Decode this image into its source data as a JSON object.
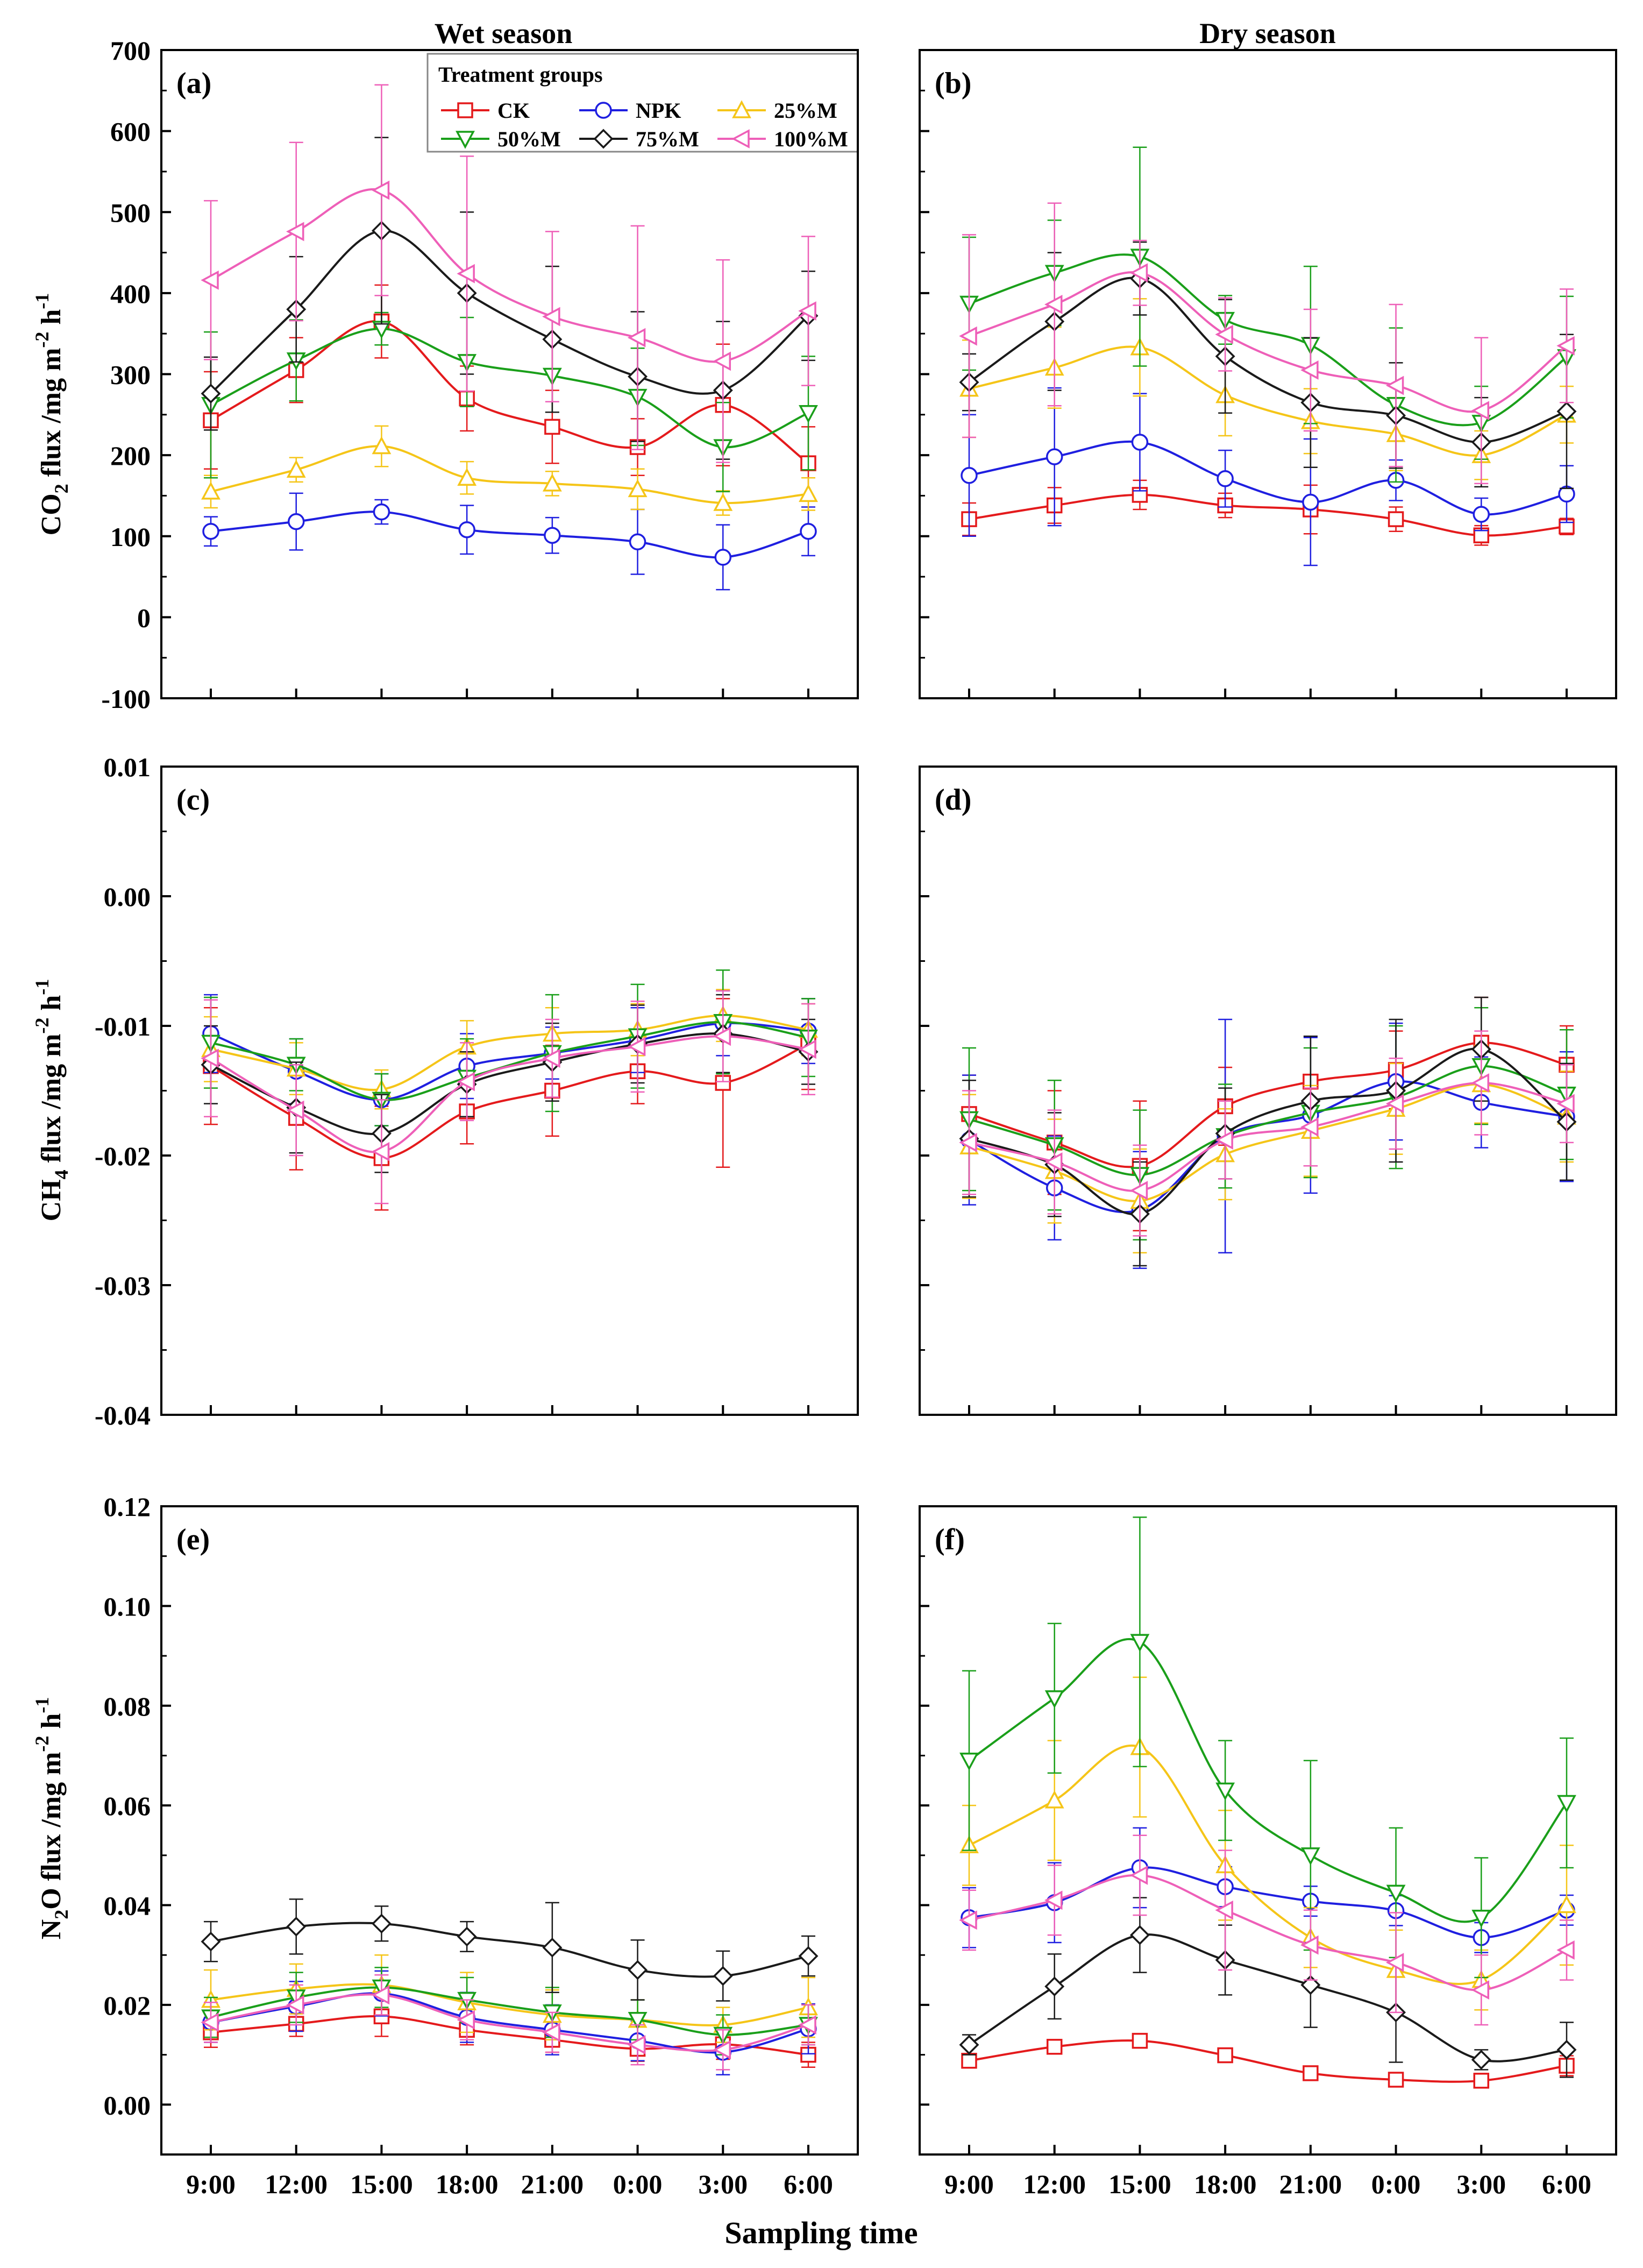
{
  "figure": {
    "season_titles": {
      "wet": "Wet season",
      "dry": "Dry season"
    },
    "x_axis_label": "Sampling time",
    "legend_title": "Treatment groups"
  },
  "x_ticks": [
    "9:00",
    "12:00",
    "15:00",
    "18:00",
    "21:00",
    "0:00",
    "3:00",
    "6:00"
  ],
  "y_labels": {
    "co2": {
      "pre": "CO",
      "sub": "2",
      "mid": " flux /mg m",
      "sup1": "-2",
      "mid2": " h",
      "sup2": "-1"
    },
    "ch4": {
      "pre": "CH",
      "sub": "4",
      "mid": " flux /mg m",
      "sup1": "-2",
      "mid2": " h",
      "sup2": "-1"
    },
    "n2o": {
      "pre": "N",
      "sub": "2",
      "mid": "O flux /mg m",
      "sup1": "-2",
      "mid2": " h",
      "sup2": "-1"
    }
  },
  "rows": {
    "co2": {
      "ylim": [
        -100,
        700
      ],
      "ticks": [
        "-100",
        "0",
        "100",
        "200",
        "300",
        "400",
        "500",
        "600",
        "700"
      ]
    },
    "ch4": {
      "ylim": [
        -0.04,
        0.01
      ],
      "ticks": [
        "-0.04",
        "-0.03",
        "-0.02",
        "-0.01",
        "0.00",
        "0.01"
      ]
    },
    "n2o": {
      "ylim": [
        -0.01,
        0.12
      ],
      "ticks": [
        "0.00",
        "0.02",
        "0.04",
        "0.06",
        "0.08",
        "0.10",
        "0.12"
      ]
    }
  },
  "series_styles": [
    {
      "name": "CK",
      "color": "#e41a1c",
      "marker": "square"
    },
    {
      "name": "NPK",
      "color": "#1f1fe0",
      "marker": "circle"
    },
    {
      "name": "25%M",
      "color": "#f5c518",
      "marker": "triangle-up"
    },
    {
      "name": "50%M",
      "color": "#1a9f1a",
      "marker": "triangle-down"
    },
    {
      "name": "75%M",
      "color": "#1a1a1a",
      "marker": "diamond"
    },
    {
      "name": "100%M",
      "color": "#ee5fb8",
      "marker": "triangle-left"
    }
  ],
  "chart_data": [
    {
      "type": "line",
      "panel": "(a)",
      "row": "co2",
      "season": "wet",
      "title": "Wet season",
      "xlabel": "Sampling time",
      "ylabel": "CO2 flux /mg m-2 h-1",
      "categories": [
        "9:00",
        "12:00",
        "15:00",
        "18:00",
        "21:00",
        "0:00",
        "3:00",
        "6:00"
      ],
      "ylim": [
        -100,
        700
      ],
      "series": [
        {
          "name": "CK",
          "values": [
            243,
            305,
            365,
            270,
            235,
            210,
            262,
            190
          ],
          "errors": [
            60,
            40,
            45,
            40,
            45,
            35,
            75,
            45
          ]
        },
        {
          "name": "NPK",
          "values": [
            106,
            118,
            130,
            108,
            101,
            93,
            74,
            106
          ],
          "errors": [
            18,
            35,
            15,
            30,
            22,
            40,
            40,
            30
          ]
        },
        {
          "name": "25%M",
          "values": [
            155,
            182,
            211,
            172,
            165,
            158,
            141,
            152
          ],
          "errors": [
            20,
            15,
            25,
            20,
            15,
            25,
            15,
            20
          ]
        },
        {
          "name": "50%M",
          "values": [
            262,
            317,
            356,
            315,
            298,
            272,
            210,
            252
          ],
          "errors": [
            90,
            50,
            20,
            55,
            45,
            60,
            55,
            70
          ]
        },
        {
          "name": "75%M",
          "values": [
            276,
            380,
            477,
            400,
            343,
            297,
            280,
            372
          ],
          "errors": [
            45,
            65,
            115,
            100,
            90,
            80,
            85,
            55
          ]
        },
        {
          "name": "100%M",
          "values": [
            416,
            476,
            527,
            424,
            371,
            345,
            316,
            378
          ],
          "errors": [
            98,
            110,
            130,
            145,
            105,
            138,
            125,
            92
          ]
        }
      ]
    },
    {
      "type": "line",
      "panel": "(b)",
      "row": "co2",
      "season": "dry",
      "title": "Dry season",
      "xlabel": "Sampling time",
      "ylabel": "CO2 flux /mg m-2 h-1",
      "categories": [
        "9:00",
        "12:00",
        "15:00",
        "18:00",
        "21:00",
        "0:00",
        "3:00",
        "6:00"
      ],
      "ylim": [
        -100,
        700
      ],
      "series": [
        {
          "name": "CK",
          "values": [
            121,
            138,
            151,
            138,
            133,
            121,
            101,
            112
          ],
          "errors": [
            20,
            22,
            18,
            15,
            30,
            15,
            12,
            10
          ]
        },
        {
          "name": "NPK",
          "values": [
            175,
            198,
            216,
            171,
            142,
            169,
            127,
            152
          ],
          "errors": [
            75,
            85,
            60,
            35,
            78,
            25,
            20,
            35
          ]
        },
        {
          "name": "25%M",
          "values": [
            282,
            308,
            333,
            274,
            242,
            226,
            200,
            250
          ],
          "errors": [
            60,
            50,
            60,
            50,
            40,
            45,
            30,
            35
          ]
        },
        {
          "name": "50%M",
          "values": [
            387,
            425,
            445,
            367,
            336,
            262,
            240,
            321
          ],
          "errors": [
            82,
            65,
            135,
            30,
            97,
            95,
            45,
            75
          ]
        },
        {
          "name": "75%M",
          "values": [
            290,
            365,
            418,
            322,
            265,
            249,
            216,
            254
          ],
          "errors": [
            35,
            85,
            45,
            70,
            80,
            65,
            55,
            95
          ]
        },
        {
          "name": "100%M",
          "values": [
            347,
            386,
            425,
            349,
            305,
            286,
            255,
            335
          ],
          "errors": [
            125,
            125,
            40,
            45,
            75,
            100,
            90,
            70
          ]
        }
      ]
    },
    {
      "type": "line",
      "panel": "(c)",
      "row": "ch4",
      "season": "wet",
      "title": "Wet season",
      "xlabel": "Sampling time",
      "ylabel": "CH4 flux /mg m-2 h-1",
      "categories": [
        "9:00",
        "12:00",
        "15:00",
        "18:00",
        "21:00",
        "0:00",
        "3:00",
        "6:00"
      ],
      "ylim": [
        -0.04,
        0.01
      ],
      "series": [
        {
          "name": "CK",
          "values": [
            -0.0131,
            -0.0171,
            -0.0202,
            -0.0166,
            -0.015,
            -0.0135,
            -0.0144,
            -0.0114
          ],
          "errors": [
            0.0045,
            0.004,
            0.004,
            0.0025,
            0.0035,
            0.0025,
            0.0065,
            0.0035
          ]
        },
        {
          "name": "NPK",
          "values": [
            -0.0106,
            -0.0135,
            -0.0157,
            -0.0131,
            -0.0121,
            -0.0111,
            -0.0098,
            -0.0104
          ],
          "errors": [
            0.003,
            0.0025,
            0.002,
            0.0025,
            0.002,
            0.0025,
            0.0025,
            0.0025
          ]
        },
        {
          "name": "25%M",
          "values": [
            -0.0118,
            -0.0133,
            -0.0149,
            -0.0116,
            -0.0106,
            -0.0103,
            -0.0092,
            -0.0103
          ],
          "errors": [
            0.0025,
            0.002,
            0.0015,
            0.002,
            0.002,
            0.002,
            0.002,
            0.002
          ]
        },
        {
          "name": "50%M",
          "values": [
            -0.0113,
            -0.013,
            -0.0157,
            -0.014,
            -0.0121,
            -0.0108,
            -0.0097,
            -0.0109
          ],
          "errors": [
            0.0035,
            0.002,
            0.002,
            0.003,
            0.0045,
            0.004,
            0.004,
            0.003
          ]
        },
        {
          "name": "75%M",
          "values": [
            -0.013,
            -0.0163,
            -0.0183,
            -0.0145,
            -0.0128,
            -0.0114,
            -0.0106,
            -0.012
          ],
          "errors": [
            0.003,
            0.0035,
            0.003,
            0.0025,
            0.003,
            0.003,
            0.003,
            0.0025
          ]
        },
        {
          "name": "100%M",
          "values": [
            -0.0125,
            -0.0165,
            -0.0197,
            -0.0143,
            -0.0125,
            -0.0116,
            -0.0108,
            -0.0118
          ],
          "errors": [
            0.0045,
            0.0035,
            0.004,
            0.003,
            0.003,
            0.0035,
            0.0035,
            0.0035
          ]
        }
      ]
    },
    {
      "type": "line",
      "panel": "(d)",
      "row": "ch4",
      "season": "dry",
      "title": "Dry season",
      "xlabel": "Sampling time",
      "ylabel": "CH4 flux /mg m-2 h-1",
      "categories": [
        "9:00",
        "12:00",
        "15:00",
        "18:00",
        "21:00",
        "0:00",
        "3:00",
        "6:00"
      ],
      "ylim": [
        -0.04,
        0.01
      ],
      "series": [
        {
          "name": "CK",
          "values": [
            -0.0168,
            -0.019,
            -0.0208,
            -0.0162,
            -0.0143,
            -0.0134,
            -0.0113,
            -0.013
          ],
          "errors": [
            0.003,
            0.004,
            0.005,
            0.003,
            0.0035,
            0.003,
            0.0035,
            0.003
          ]
        },
        {
          "name": "NPK",
          "values": [
            -0.0188,
            -0.0225,
            -0.0242,
            -0.0185,
            -0.0169,
            -0.0143,
            -0.0159,
            -0.017
          ],
          "errors": [
            0.005,
            0.004,
            0.0045,
            0.009,
            0.006,
            0.0045,
            0.0035,
            0.005
          ]
        },
        {
          "name": "25%M",
          "values": [
            -0.0193,
            -0.0212,
            -0.0235,
            -0.0199,
            -0.0181,
            -0.0164,
            -0.0145,
            -0.017
          ],
          "errors": [
            0.004,
            0.004,
            0.004,
            0.0035,
            0.0035,
            0.0035,
            0.003,
            0.0035
          ]
        },
        {
          "name": "50%M",
          "values": [
            -0.0172,
            -0.0192,
            -0.0215,
            -0.0185,
            -0.0167,
            -0.0155,
            -0.0131,
            -0.0153
          ],
          "errors": [
            0.0055,
            0.005,
            0.005,
            0.004,
            0.005,
            0.0055,
            0.0045,
            0.005
          ]
        },
        {
          "name": "75%M",
          "values": [
            -0.0187,
            -0.0207,
            -0.0245,
            -0.0183,
            -0.0158,
            -0.015,
            -0.0118,
            -0.0174
          ],
          "errors": [
            0.0045,
            0.004,
            0.004,
            0.0035,
            0.005,
            0.0055,
            0.004,
            0.0045
          ]
        },
        {
          "name": "100%M",
          "values": [
            -0.019,
            -0.0205,
            -0.0227,
            -0.0188,
            -0.0178,
            -0.016,
            -0.0144,
            -0.016
          ],
          "errors": [
            0.004,
            0.004,
            0.0035,
            0.003,
            0.003,
            0.0035,
            0.004,
            0.003
          ]
        }
      ]
    },
    {
      "type": "line",
      "panel": "(e)",
      "row": "n2o",
      "season": "wet",
      "title": "Wet season",
      "xlabel": "Sampling time",
      "ylabel": "N2O flux /mg m-2 h-1",
      "categories": [
        "9:00",
        "12:00",
        "15:00",
        "18:00",
        "21:00",
        "0:00",
        "3:00",
        "6:00"
      ],
      "ylim": [
        -0.01,
        0.12
      ],
      "series": [
        {
          "name": "CK",
          "values": [
            0.0145,
            0.0162,
            0.0177,
            0.015,
            0.013,
            0.0112,
            0.0121,
            0.01
          ],
          "errors": [
            0.003,
            0.0025,
            0.004,
            0.003,
            0.0025,
            0.0025,
            0.003,
            0.0025
          ]
        },
        {
          "name": "NPK",
          "values": [
            0.0165,
            0.0197,
            0.0223,
            0.0175,
            0.015,
            0.0128,
            0.0105,
            0.0152
          ],
          "errors": [
            0.004,
            0.005,
            0.0045,
            0.005,
            0.005,
            0.004,
            0.0045,
            0.005
          ]
        },
        {
          "name": "25%M",
          "values": [
            0.021,
            0.0232,
            0.024,
            0.0205,
            0.018,
            0.017,
            0.016,
            0.0195
          ],
          "errors": [
            0.006,
            0.005,
            0.006,
            0.006,
            0.005,
            0.004,
            0.0035,
            0.006
          ]
        },
        {
          "name": "50%M",
          "values": [
            0.0175,
            0.0215,
            0.0235,
            0.021,
            0.0185,
            0.017,
            0.014,
            0.016
          ],
          "errors": [
            0.004,
            0.005,
            0.004,
            0.0045,
            0.005,
            0.004,
            0.004,
            0.004
          ]
        },
        {
          "name": "75%M",
          "values": [
            0.0327,
            0.0357,
            0.0363,
            0.0337,
            0.0315,
            0.027,
            0.0258,
            0.0298
          ],
          "errors": [
            0.004,
            0.0055,
            0.0035,
            0.003,
            0.009,
            0.006,
            0.005,
            0.004
          ]
        },
        {
          "name": "100%M",
          "values": [
            0.0165,
            0.02,
            0.022,
            0.017,
            0.0145,
            0.012,
            0.011,
            0.016
          ],
          "errors": [
            0.004,
            0.004,
            0.004,
            0.004,
            0.004,
            0.004,
            0.004,
            0.004
          ]
        }
      ]
    },
    {
      "type": "line",
      "panel": "(f)",
      "row": "n2o",
      "season": "dry",
      "title": "Dry season",
      "xlabel": "Sampling time",
      "ylabel": "N2O flux /mg m-2 h-1",
      "categories": [
        "9:00",
        "12:00",
        "15:00",
        "18:00",
        "21:00",
        "0:00",
        "3:00",
        "6:00"
      ],
      "ylim": [
        -0.01,
        0.12
      ],
      "series": [
        {
          "name": "CK",
          "values": [
            0.0088,
            0.0116,
            0.0128,
            0.0099,
            0.0063,
            0.005,
            0.0048,
            0.0078
          ],
          "errors": [
            0.0012,
            0.0012,
            0.001,
            0.001,
            0.001,
            0.001,
            0.0008,
            0.002
          ]
        },
        {
          "name": "NPK",
          "values": [
            0.0375,
            0.0405,
            0.0475,
            0.0437,
            0.0408,
            0.0389,
            0.0335,
            0.039
          ],
          "errors": [
            0.006,
            0.008,
            0.008,
            0.004,
            0.003,
            0.003,
            0.003,
            0.003
          ]
        },
        {
          "name": "25%M",
          "values": [
            0.052,
            0.061,
            0.0717,
            0.048,
            0.0335,
            0.027,
            0.025,
            0.04
          ],
          "errors": [
            0.008,
            0.012,
            0.014,
            0.011,
            0.006,
            0.008,
            0.006,
            0.012
          ]
        },
        {
          "name": "50%M",
          "values": [
            0.069,
            0.0815,
            0.0928,
            0.063,
            0.05,
            0.0425,
            0.0375,
            0.0605
          ],
          "errors": [
            0.018,
            0.015,
            0.025,
            0.01,
            0.019,
            0.013,
            0.012,
            0.013
          ]
        },
        {
          "name": "75%M",
          "values": [
            0.012,
            0.0237,
            0.034,
            0.029,
            0.024,
            0.0185,
            0.009,
            0.011
          ],
          "errors": [
            0.002,
            0.0065,
            0.0075,
            0.007,
            0.0085,
            0.01,
            0.002,
            0.0055
          ]
        },
        {
          "name": "100%M",
          "values": [
            0.037,
            0.041,
            0.046,
            0.039,
            0.032,
            0.0285,
            0.023,
            0.031
          ],
          "errors": [
            0.006,
            0.007,
            0.008,
            0.012,
            0.007,
            0.01,
            0.007,
            0.006
          ]
        }
      ]
    }
  ]
}
